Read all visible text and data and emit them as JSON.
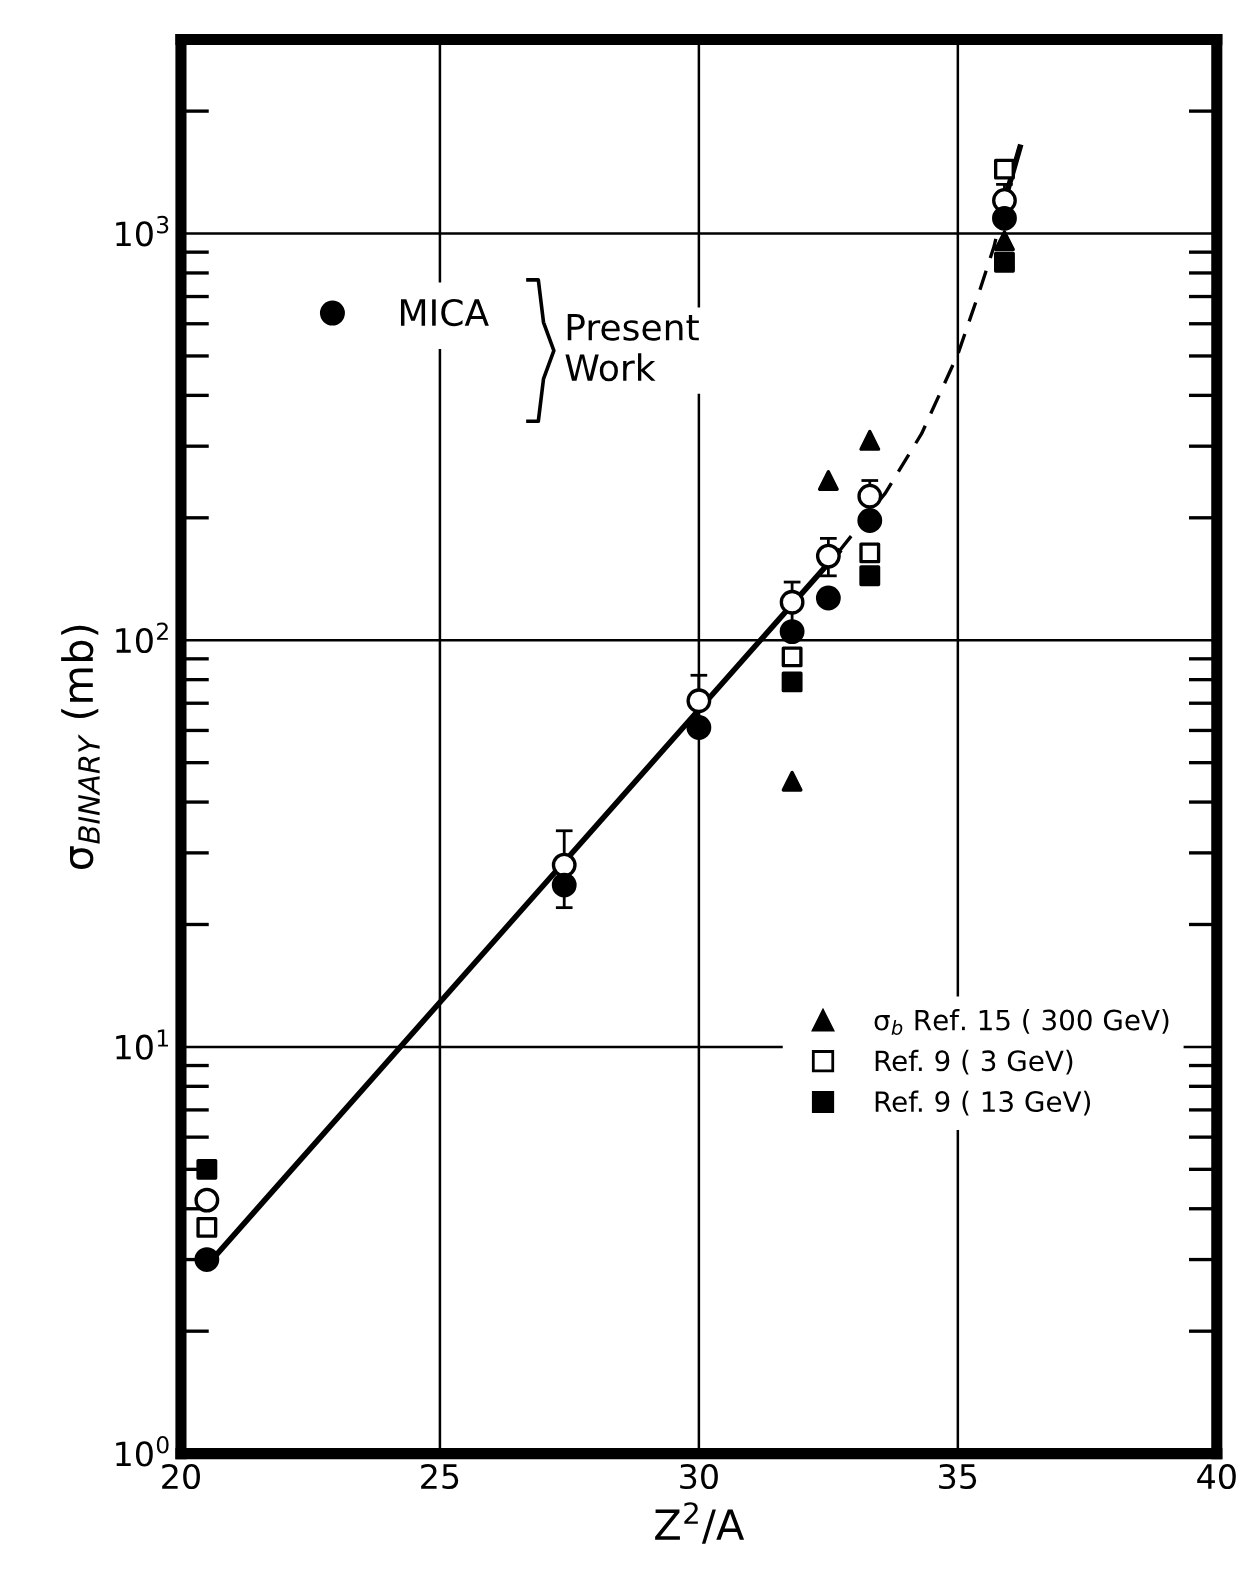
{
  "chart_data": {
    "type": "scatter",
    "xlabel": "Z$^{2}$/A",
    "ylabel": "σ$_{BINARY}$ (mb)",
    "xlim": [
      20,
      40
    ],
    "xticks": [
      20,
      25,
      30,
      35,
      40
    ],
    "ylim": [
      1,
      3000
    ],
    "yticks": [
      {
        "value": 1,
        "label": "10$^{0}$"
      },
      {
        "value": 10,
        "label": "10$^{1}$"
      },
      {
        "value": 100,
        "label": "10$^{2}$"
      },
      {
        "value": 1000,
        "label": "10$^{3}$"
      }
    ],
    "log": "y",
    "grid": true,
    "legend": [
      "top left",
      "bottom right"
    ],
    "annotations": [
      "Present\nWork"
    ],
    "series": [
      {
        "color": "#ffffff",
        "marker": "circle",
        "x": [
          20.5,
          27.4,
          30,
          31.8,
          32.5,
          33.3,
          35.9
        ],
        "values": [
          4.2,
          28,
          71,
          124,
          161,
          226,
          1206
        ],
        "errors": [
          null,
          6,
          11,
          15,
          17,
          21,
          115
        ]
      },
      {
        "name": "MICA",
        "color": "#000000",
        "marker": "circle",
        "x": [
          20.5,
          27.4,
          30,
          31.8,
          32.5,
          33.3,
          35.9
        ],
        "values": [
          3.0,
          25,
          61,
          105,
          127,
          197,
          1090
        ]
      },
      {
        "name": "σ$_{b}$ Ref. 15 ( 300 GeV)",
        "color": "#000000",
        "marker": "triangle",
        "x": [
          31.8,
          32.5,
          33.3,
          35.9
        ],
        "values": [
          45,
          247,
          310,
          960
        ]
      },
      {
        "name": "Ref. 9 ( 3 GeV)",
        "color": "#ffffff",
        "marker": "square",
        "x": [
          20.5,
          31.8,
          33.3,
          35.9
        ],
        "values": [
          3.6,
          91,
          164,
          1440
        ]
      },
      {
        "name": "Ref. 9 ( 13 GeV)",
        "color": "#000000",
        "marker": "square",
        "x": [
          20.5,
          31.8,
          33.3,
          35.9
        ],
        "values": [
          5.0,
          79,
          144,
          850
        ]
      },
      {
        "type": "line",
        "color": "#000000",
        "line_style": "solid",
        "x": [
          20.5,
          32.7
        ],
        "values": [
          2.9,
          165
        ]
      },
      {
        "type": "line",
        "color": "#000000",
        "line_style": "dashed",
        "x": [
          32.7,
          33.6,
          34.3,
          35,
          35.4,
          35.7,
          35.9
        ],
        "values": [
          165,
          230,
          322,
          505,
          710,
          930,
          1200
        ]
      },
      {
        "type": "line",
        "color": "#000000",
        "line_style": "solid",
        "x": [
          35.9,
          36.2
        ],
        "values": [
          1200,
          1630
        ]
      }
    ]
  }
}
